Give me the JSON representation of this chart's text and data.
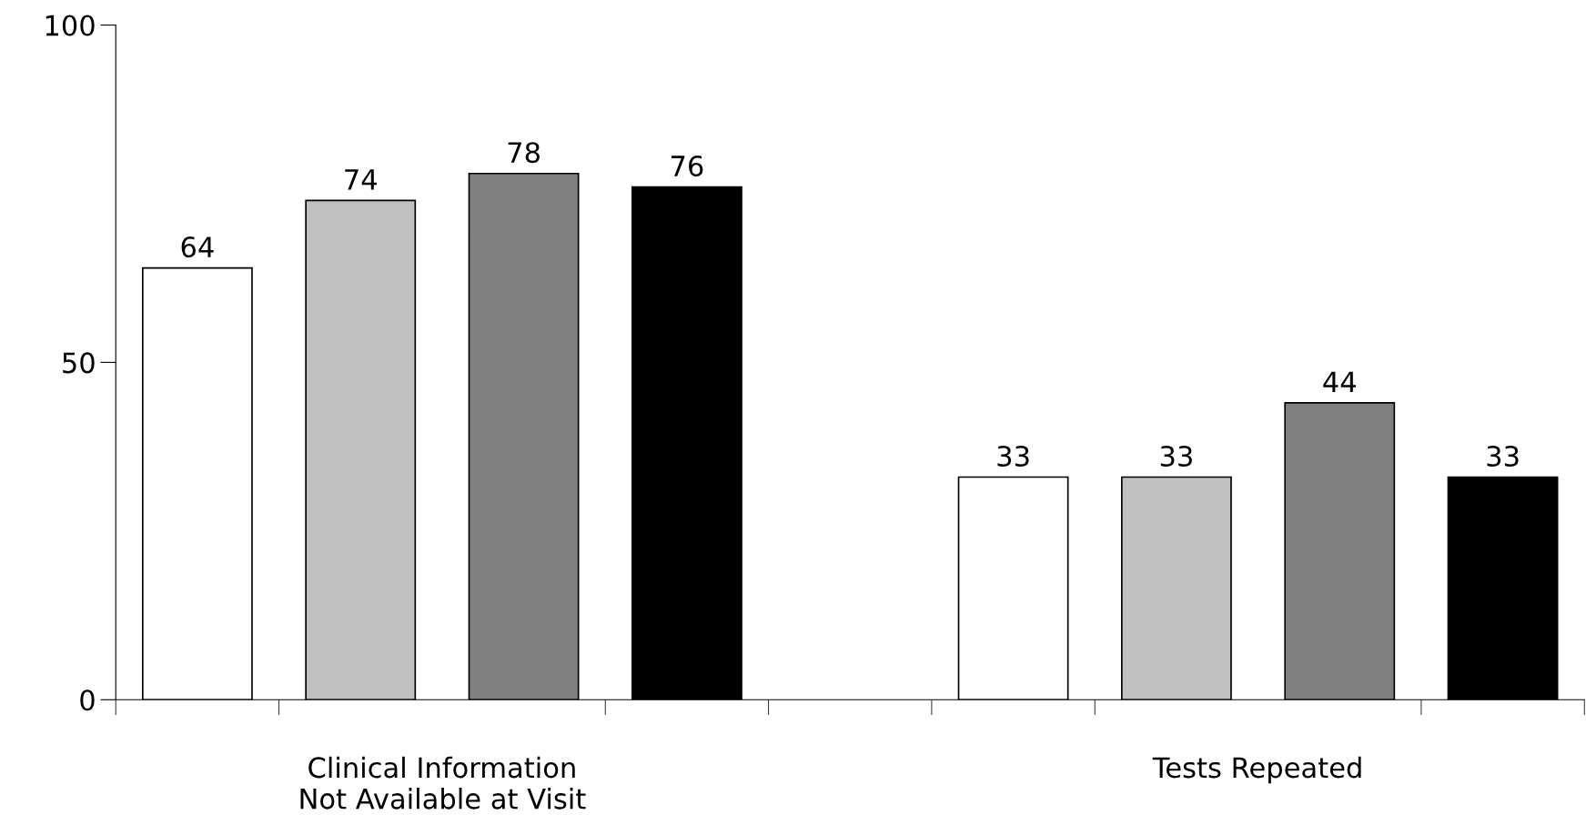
{
  "chart_data": {
    "type": "bar",
    "categories": [
      "Clinical Information\nNot Available at Visit",
      "Tests Repeated"
    ],
    "series": [
      {
        "color": "#ffffff",
        "values": [
          64,
          33
        ]
      },
      {
        "color": "#c0c0c0",
        "values": [
          74,
          33
        ]
      },
      {
        "color": "#808080",
        "values": [
          78,
          44
        ]
      },
      {
        "color": "#000000",
        "values": [
          76,
          33
        ]
      }
    ],
    "ylim": [
      0,
      100
    ],
    "yticks": [
      0,
      50,
      100
    ],
    "data_labels": true,
    "grid": false,
    "legend": false
  }
}
